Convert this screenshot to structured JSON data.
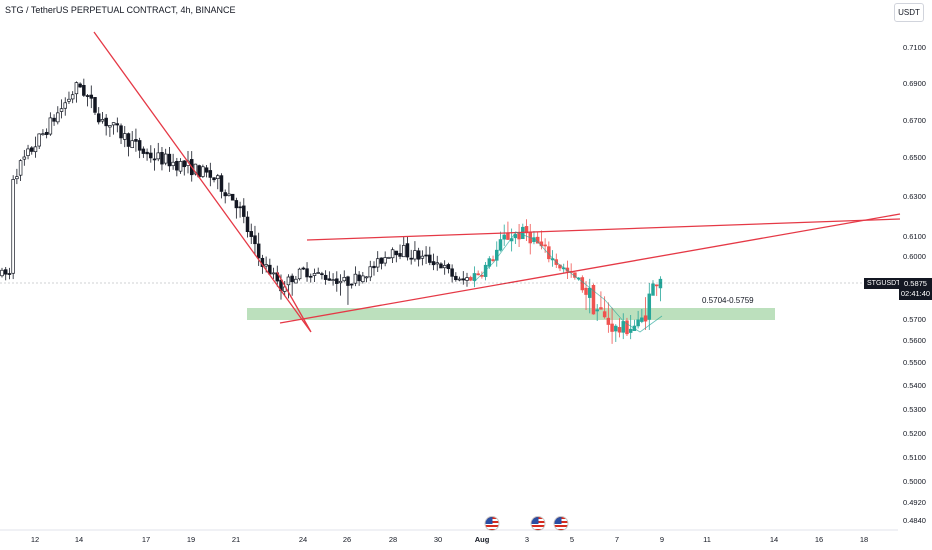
{
  "header": {
    "title": "STG / TetherUS PERPETUAL CONTRACT, 4h, BINANCE",
    "currency": "USDT"
  },
  "price_axis": {
    "ticks": [
      "0.7100",
      "0.6900",
      "0.6700",
      "0.6500",
      "0.6300",
      "0.6100",
      "0.6000",
      "0.5800",
      "0.5700",
      "0.5600",
      "0.5500",
      "0.5400",
      "0.5300",
      "0.5200",
      "0.5100",
      "0.5000",
      "0.4920",
      "0.4840"
    ]
  },
  "time_axis": {
    "ticks": [
      "12",
      "14",
      "17",
      "19",
      "21",
      "24",
      "26",
      "28",
      "30",
      "Aug",
      "3",
      "5",
      "7",
      "9",
      "11",
      "14",
      "16",
      "18"
    ]
  },
  "current_price": {
    "symbol": "STGUSDT.P",
    "price": "0.5875",
    "countdown": "02:41:40",
    "color": "#131722"
  },
  "zone": {
    "label": "0.5704-0.5759",
    "low": 0.5704,
    "high": 0.5759,
    "color": "#a5d6a7"
  },
  "events": {
    "icons": [
      "us-flag-icon",
      "us-flag-icon",
      "us-flag-icon"
    ]
  },
  "colors": {
    "up": "#26a69a",
    "down": "#ef5350",
    "candle": "#131722",
    "trendline": "#e53946"
  },
  "chart_data": {
    "type": "candlestick",
    "title": "STG / TetherUS PERPETUAL CONTRACT, 4h, BINANCE",
    "interval": "4h",
    "yscale": "log",
    "ylim": [
      0.484,
      0.715
    ],
    "x_labels": [
      "12",
      "14",
      "17",
      "19",
      "21",
      "24",
      "26",
      "28",
      "30",
      "Aug",
      "3",
      "5",
      "7",
      "9",
      "11",
      "14",
      "16",
      "18"
    ],
    "approx_close_path": [
      {
        "date": "Jul 11",
        "price": 0.64
      },
      {
        "date": "Jul 14",
        "price": 0.69
      },
      {
        "date": "Jul 15",
        "price": 0.672
      },
      {
        "date": "Jul 17",
        "price": 0.652
      },
      {
        "date": "Jul 19",
        "price": 0.645
      },
      {
        "date": "Jul 20",
        "price": 0.64
      },
      {
        "date": "Jul 21",
        "price": 0.628
      },
      {
        "date": "Jul 22",
        "price": 0.6
      },
      {
        "date": "Jul 23",
        "price": 0.58
      },
      {
        "date": "Jul 24",
        "price": 0.59
      },
      {
        "date": "Jul 26",
        "price": 0.582
      },
      {
        "date": "Jul 27",
        "price": 0.59
      },
      {
        "date": "Jul 28",
        "price": 0.605
      },
      {
        "date": "Jul 30",
        "price": 0.596
      },
      {
        "date": "Jul 31",
        "price": 0.582
      },
      {
        "date": "Aug 1",
        "price": 0.59
      },
      {
        "date": "Aug 2",
        "price": 0.61
      },
      {
        "date": "Aug 3",
        "price": 0.612
      },
      {
        "date": "Aug 4",
        "price": 0.6
      },
      {
        "date": "Aug 5",
        "price": 0.586
      },
      {
        "date": "Aug 6",
        "price": 0.574
      },
      {
        "date": "Aug 7",
        "price": 0.565
      },
      {
        "date": "Aug 8",
        "price": 0.568
      },
      {
        "date": "Aug 9",
        "price": 0.5875
      }
    ],
    "zones": [
      {
        "low": 0.5704,
        "high": 0.5759,
        "label": "0.5704-0.5759"
      }
    ],
    "last_price": 0.5875
  }
}
